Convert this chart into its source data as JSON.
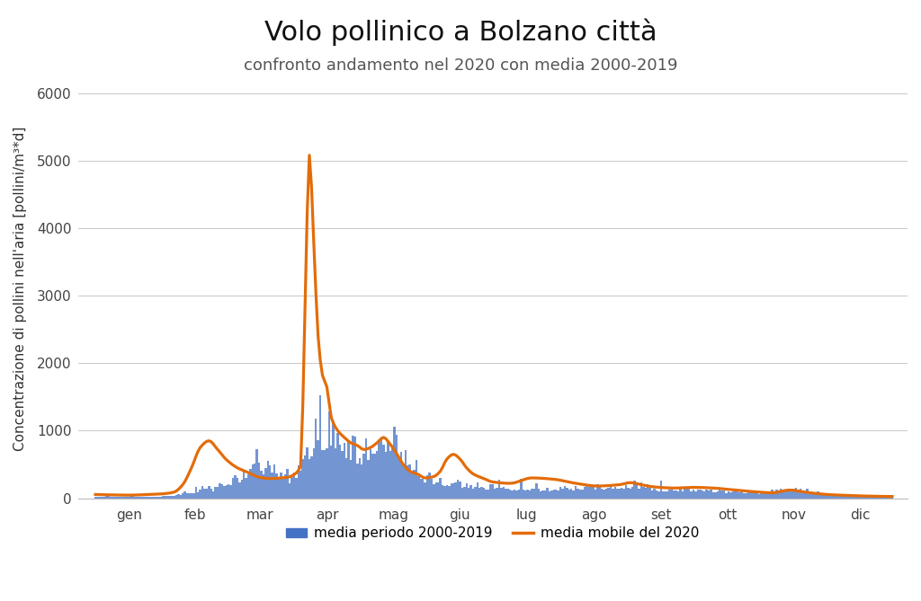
{
  "title": "Volo pollinico a Bolzano città",
  "subtitle": "confronto andamento nel 2020 con media 2000-2019",
  "ylabel": "Concentrazione di pollini nell'aria [pollini/m³*d]",
  "bar_label": "media periodo 2000-2019",
  "line_label": "media mobile del 2020",
  "bar_color": "#4472C4",
  "line_color": "#E36C09",
  "bg_color": "#FFFFFF",
  "grid_color": "#C8C8C8",
  "ylim": [
    0,
    6200
  ],
  "yticks": [
    0,
    1000,
    2000,
    3000,
    4000,
    5000,
    6000
  ],
  "month_labels": [
    "gen",
    "feb",
    "mar",
    "apr",
    "mag",
    "giu",
    "lug",
    "ago",
    "set",
    "ott",
    "nov",
    "dic"
  ],
  "title_fontsize": 22,
  "subtitle_fontsize": 13,
  "ylabel_fontsize": 11,
  "legend_fontsize": 11,
  "tick_fontsize": 11,
  "line_cp_days": [
    0,
    5,
    15,
    25,
    31,
    36,
    40,
    44,
    48,
    52,
    56,
    60,
    65,
    70,
    75,
    80,
    85,
    88,
    91,
    94,
    96,
    98,
    100,
    102,
    104,
    106,
    108,
    111,
    114,
    117,
    120,
    123,
    126,
    129,
    132,
    135,
    138,
    141,
    144,
    148,
    151,
    155,
    158,
    161,
    164,
    167,
    170,
    173,
    178,
    182,
    190,
    200,
    210,
    220,
    230,
    240,
    245,
    250,
    255,
    265,
    274,
    283,
    290,
    300,
    310,
    318,
    325,
    330,
    335,
    345,
    355,
    365
  ],
  "line_cp_vals": [
    55,
    50,
    45,
    55,
    65,
    90,
    200,
    450,
    750,
    850,
    720,
    570,
    450,
    380,
    310,
    290,
    300,
    310,
    350,
    480,
    2800,
    5080,
    3800,
    2400,
    1820,
    1650,
    1200,
    1000,
    900,
    820,
    780,
    720,
    750,
    820,
    900,
    800,
    660,
    500,
    400,
    350,
    300,
    320,
    400,
    580,
    650,
    580,
    450,
    360,
    290,
    240,
    220,
    300,
    280,
    220,
    180,
    200,
    230,
    200,
    170,
    150,
    160,
    150,
    130,
    100,
    80,
    120,
    90,
    70,
    55,
    40,
    30,
    25
  ]
}
